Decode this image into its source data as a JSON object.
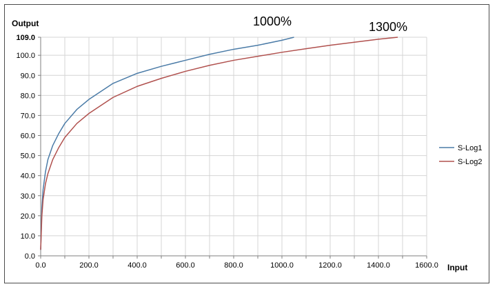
{
  "chart_data": {
    "type": "line",
    "title": "",
    "xlabel": "Input",
    "ylabel": "Output",
    "xlim": [
      0,
      1600
    ],
    "ylim": [
      0,
      109
    ],
    "x_ticks": [
      0,
      100,
      200,
      300,
      400,
      500,
      600,
      700,
      800,
      900,
      1000,
      1100,
      1200,
      1300,
      1400,
      1500,
      1600
    ],
    "x_tick_labels": [
      "0.0",
      "200.0",
      "400.0",
      "600.0",
      "800.0",
      "1000.0",
      "1200.0",
      "1400.0",
      "1600.0"
    ],
    "x_tick_label_values": [
      0,
      200,
      400,
      600,
      800,
      1000,
      1200,
      1400,
      1600
    ],
    "y_ticks": [
      0,
      10,
      20,
      30,
      40,
      50,
      60,
      70,
      80,
      90,
      100,
      109
    ],
    "y_tick_labels": [
      "0.0",
      "10.0",
      "20.0",
      "30.0",
      "40.0",
      "50.0",
      "60.0",
      "70.0",
      "80.0",
      "90.0",
      "100.0",
      "109.0"
    ],
    "grid": true,
    "legend_position": "right",
    "series": [
      {
        "name": "S-Log1",
        "color": "#4a7ba7",
        "points": [
          [
            0,
            3
          ],
          [
            5,
            24
          ],
          [
            10,
            33
          ],
          [
            20,
            42
          ],
          [
            30,
            48
          ],
          [
            50,
            55
          ],
          [
            75,
            61
          ],
          [
            100,
            66
          ],
          [
            150,
            73
          ],
          [
            200,
            78
          ],
          [
            250,
            82
          ],
          [
            300,
            86
          ],
          [
            400,
            91
          ],
          [
            500,
            94.5
          ],
          [
            600,
            97.5
          ],
          [
            700,
            100.5
          ],
          [
            800,
            103
          ],
          [
            900,
            105
          ],
          [
            1000,
            107.5
          ],
          [
            1050,
            109
          ]
        ]
      },
      {
        "name": "S-Log2",
        "color": "#b0504d",
        "points": [
          [
            0,
            3
          ],
          [
            5,
            20
          ],
          [
            10,
            28
          ],
          [
            20,
            36
          ],
          [
            30,
            41
          ],
          [
            50,
            48
          ],
          [
            75,
            54
          ],
          [
            100,
            59
          ],
          [
            150,
            66
          ],
          [
            200,
            71
          ],
          [
            250,
            75
          ],
          [
            300,
            79
          ],
          [
            400,
            84.5
          ],
          [
            500,
            88.5
          ],
          [
            600,
            92
          ],
          [
            700,
            95
          ],
          [
            800,
            97.5
          ],
          [
            900,
            99.5
          ],
          [
            1000,
            101.5
          ],
          [
            1100,
            103.3
          ],
          [
            1200,
            105
          ],
          [
            1300,
            106.5
          ],
          [
            1400,
            108
          ],
          [
            1480,
            109
          ]
        ]
      }
    ],
    "annotations": [
      {
        "text": "1000%",
        "x": 1000,
        "y": 109
      },
      {
        "text": "1300%",
        "x": 1480,
        "y": 109
      }
    ]
  }
}
